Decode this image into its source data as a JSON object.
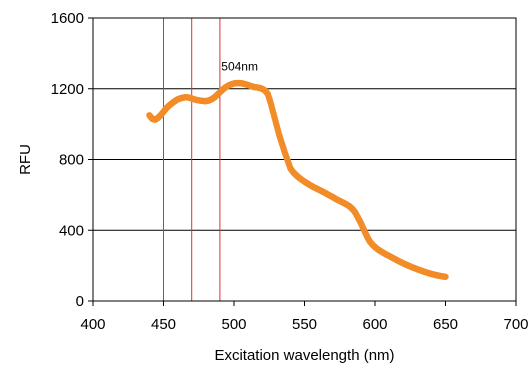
{
  "chart_data": {
    "type": "scatter",
    "xlabel": "Excitation wavelength (nm)",
    "ylabel": "RFU",
    "xlim": [
      400,
      700
    ],
    "ylim": [
      0,
      1600
    ],
    "x_ticks": [
      400,
      450,
      500,
      550,
      600,
      650,
      700
    ],
    "y_ticks": [
      0,
      400,
      800,
      1200,
      1600
    ],
    "x_tick_labels": [
      "400",
      "450",
      "500",
      "550",
      "600",
      "650",
      "700"
    ],
    "y_tick_labels": [
      "0",
      "400",
      "800",
      "1200",
      "1600"
    ],
    "grid": "horizontal",
    "legend": "none",
    "marker_color": "#f28c28",
    "vline_color": "#d9342b",
    "vertical_lines": [
      450,
      470,
      490
    ],
    "annotations": [
      {
        "text": "504nm",
        "x": 504,
        "y": 1240
      }
    ],
    "series": [
      {
        "x": [
          440,
          442,
          444,
          446,
          448,
          450,
          452,
          454,
          456,
          458,
          460,
          462,
          464,
          466,
          468,
          470,
          472,
          474,
          476,
          478,
          480,
          482,
          484,
          486,
          488,
          490,
          492,
          494,
          496,
          498,
          500,
          502,
          504,
          506,
          508,
          510,
          512,
          514,
          516,
          518,
          520,
          522,
          524,
          526,
          528,
          530,
          532,
          534,
          536,
          538,
          540,
          542,
          544,
          546,
          548,
          550,
          552,
          554,
          556,
          558,
          560,
          562,
          564,
          566,
          568,
          570,
          572,
          574,
          576,
          578,
          580,
          582,
          584,
          586,
          588,
          590,
          592,
          594,
          596,
          598,
          600,
          602,
          604,
          606,
          608,
          610,
          612,
          614,
          616,
          618,
          620,
          622,
          624,
          626,
          628,
          630,
          632,
          634,
          636,
          638,
          640,
          642,
          644,
          646,
          648,
          650
        ],
        "y": [
          1050,
          1030,
          1025,
          1035,
          1050,
          1070,
          1090,
          1105,
          1118,
          1130,
          1140,
          1146,
          1150,
          1152,
          1150,
          1145,
          1140,
          1136,
          1133,
          1131,
          1130,
          1133,
          1140,
          1150,
          1165,
          1180,
          1195,
          1208,
          1218,
          1225,
          1230,
          1232,
          1232,
          1230,
          1226,
          1221,
          1215,
          1210,
          1208,
          1205,
          1200,
          1190,
          1170,
          1120,
          1060,
          1000,
          940,
          890,
          840,
          795,
          750,
          728,
          712,
          698,
          686,
          675,
          665,
          655,
          646,
          638,
          630,
          622,
          614,
          605,
          596,
          588,
          578,
          570,
          562,
          554,
          545,
          535,
          520,
          500,
          470,
          440,
          405,
          370,
          340,
          320,
          305,
          292,
          282,
          272,
          263,
          255,
          246,
          238,
          229,
          221,
          213,
          206,
          199,
          192,
          186,
          180,
          174,
          168,
          163,
          158,
          153,
          149,
          145,
          142,
          139,
          137
        ]
      }
    ]
  }
}
